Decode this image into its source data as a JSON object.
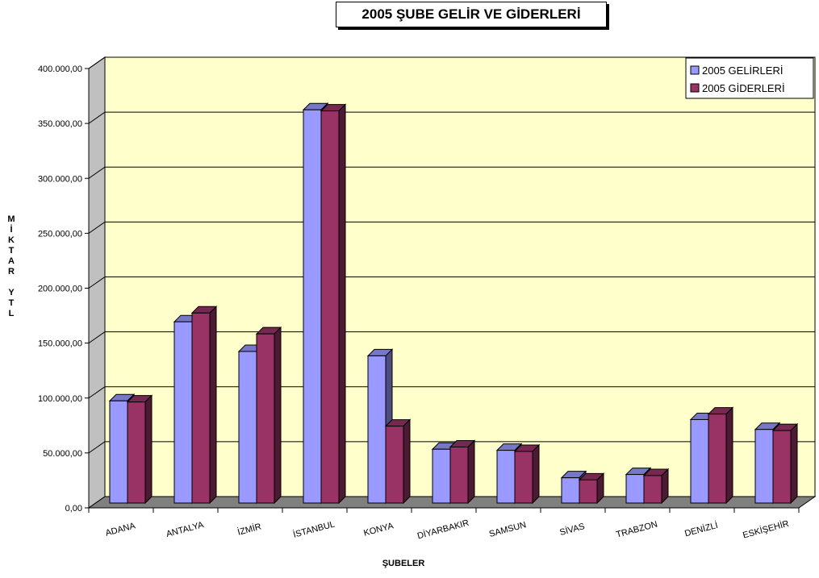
{
  "chart_data": {
    "type": "bar",
    "title": "2005 ŞUBE GELİR VE GİDERLERİ",
    "xlabel": "ŞUBELER",
    "ylabel": "MİKTAR YTL",
    "ylim": [
      0,
      400000
    ],
    "yticks": [
      "0,00",
      "50.000,00",
      "100.000,00",
      "150.000,00",
      "200.000,00",
      "250.000,00",
      "300.000,00",
      "350.000,00",
      "400.000,00"
    ],
    "categories": [
      "ADANA",
      "ANTALYA",
      "İZMİR",
      "İSTANBUL",
      "KONYA",
      "DİYARBAKIR",
      "SAMSUN",
      "SİVAS",
      "TRABZON",
      "DENİZLİ",
      "ESKİŞEHİR"
    ],
    "series": [
      {
        "name": "2005 GELİRLERİ",
        "color": "#9999ff",
        "values": [
          93000,
          165000,
          138000,
          358000,
          134000,
          49000,
          48000,
          23000,
          26000,
          76000,
          67000
        ]
      },
      {
        "name": "2005 GİDERLERİ",
        "color": "#993366",
        "values": [
          92000,
          173000,
          154000,
          357000,
          70000,
          51000,
          47000,
          21000,
          25000,
          81000,
          66000
        ]
      }
    ],
    "legend": "top-right",
    "grid": true,
    "plot_background": "#ffffcc",
    "floor_color": "#808080"
  }
}
